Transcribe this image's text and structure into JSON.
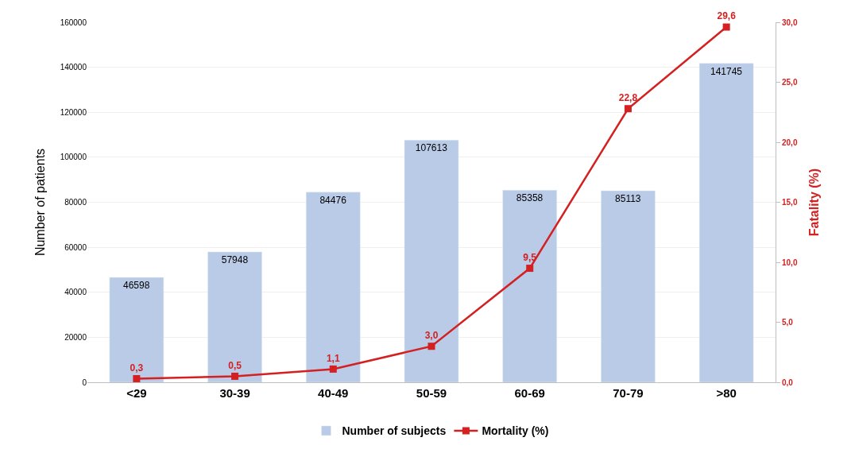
{
  "chart_data": {
    "type": "bar",
    "ylabel": "Number of patients",
    "y2label": "Fatality (%)",
    "categories": [
      "<29",
      "30-39",
      "40-49",
      "50-59",
      "60-69",
      "70-79",
      ">80"
    ],
    "series": [
      {
        "name": "Number of subjects",
        "color": "#b9cbe7",
        "values": [
          46598,
          57948,
          84476,
          107613,
          85358,
          85113,
          141745
        ],
        "value_labels": [
          "46598",
          "57948",
          "84476",
          "107613",
          "85358",
          "85113",
          "141745"
        ]
      },
      {
        "name": "Mortality (%)",
        "type": "line",
        "axis": "y2",
        "color": "#d42020",
        "marker": "square",
        "values": [
          0.3,
          0.5,
          1.1,
          3.0,
          9.5,
          22.8,
          29.6
        ],
        "value_labels": [
          "0,3",
          "0,5",
          "1,1",
          "3,0",
          "9,5",
          "22,8",
          "29,6"
        ]
      }
    ],
    "ylim": [
      0,
      160000
    ],
    "yticks": [
      0,
      20000,
      40000,
      60000,
      80000,
      100000,
      120000,
      140000,
      160000
    ],
    "y2lim": [
      0,
      30
    ],
    "y2ticks": [
      {
        "value": 0,
        "label": "0,0"
      },
      {
        "value": 5,
        "label": "5,0"
      },
      {
        "value": 10,
        "label": "10,0"
      },
      {
        "value": 15,
        "label": "15,0"
      },
      {
        "value": 20,
        "label": "20,0"
      },
      {
        "value": 25,
        "label": "25,0"
      },
      {
        "value": 30,
        "label": "30,0"
      }
    ],
    "grid": "y",
    "legend": "bottom"
  }
}
